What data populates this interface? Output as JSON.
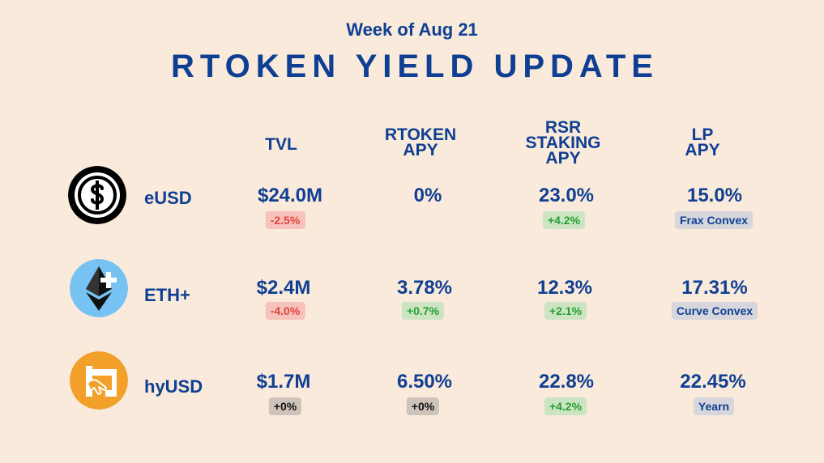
{
  "header": {
    "week": "Week of Aug 21",
    "title": "RTOKEN YIELD UPDATE"
  },
  "columns": {
    "tvl": [
      "TVL"
    ],
    "rtoken_apy": [
      "RTOKEN",
      "APY"
    ],
    "rsr_apy": [
      "RSR",
      "STAKING",
      "APY"
    ],
    "lp_apy": [
      "LP",
      "APY"
    ]
  },
  "rows": [
    {
      "icon": "dollar-circle-icon",
      "name": "eUSD",
      "tvl": "$24.0M",
      "tvl_change": "-2.5%",
      "rtoken_apy": "0%",
      "rtoken_change": "",
      "rsr_apy": "23.0%",
      "rsr_change": "+4.2%",
      "lp_apy": "15.0%",
      "lp_source": "Frax Convex"
    },
    {
      "icon": "ethereum-plus-icon",
      "name": "ETH+",
      "tvl": "$2.4M",
      "tvl_change": "-4.0%",
      "rtoken_apy": "3.78%",
      "rtoken_change": "+0.7%",
      "rsr_apy": "12.3%",
      "rsr_change": "+2.1%",
      "lp_apy": "17.31%",
      "lp_source": "Curve Convex"
    },
    {
      "icon": "hyusd-hand-icon",
      "name": "hyUSD",
      "tvl": "$1.7M",
      "tvl_change": "+0%",
      "rtoken_apy": "6.50%",
      "rtoken_change": "+0%",
      "rsr_apy": "22.8%",
      "rsr_change": "+4.2%",
      "lp_apy": "22.45%",
      "lp_source": "Yearn"
    }
  ],
  "colors": {
    "background": "#f9eadb",
    "text": "#0f3f93",
    "negative": "#e0463c",
    "positive": "#23a035"
  }
}
